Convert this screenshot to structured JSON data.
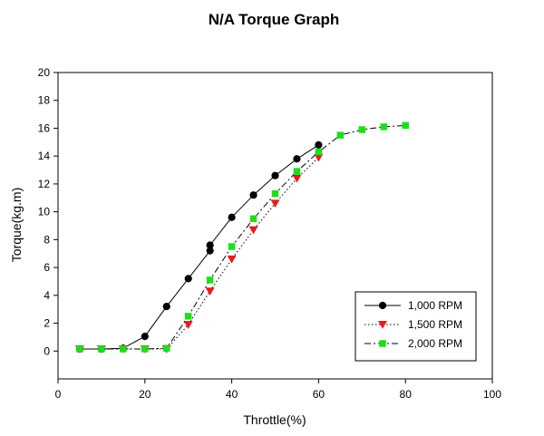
{
  "chart_data": {
    "type": "line",
    "title": "N/A Torque Graph",
    "xlabel": "Throttle(%)",
    "ylabel": "Torque(kg.m)",
    "xlim": [
      0,
      100
    ],
    "ylim": [
      -2,
      20
    ],
    "xticks": [
      0,
      20,
      40,
      60,
      80,
      100
    ],
    "yticks": [
      0,
      2,
      4,
      6,
      8,
      10,
      12,
      14,
      16,
      18,
      20
    ],
    "grid": false,
    "legend_position": "bottom-right",
    "series": [
      {
        "name": "1,000 RPM",
        "color": "#000000",
        "marker": "circle",
        "line_style": "solid",
        "points": [
          [
            5,
            0.15
          ],
          [
            10,
            0.15
          ],
          [
            15,
            0.2
          ],
          [
            20,
            1.05
          ],
          [
            25,
            3.2
          ],
          [
            30,
            5.2
          ],
          [
            35,
            7.2
          ],
          [
            35,
            7.6
          ],
          [
            40,
            9.6
          ],
          [
            45,
            11.2
          ],
          [
            50,
            12.6
          ],
          [
            55,
            13.8
          ],
          [
            60,
            14.8
          ]
        ]
      },
      {
        "name": "1,500 RPM",
        "color": "#e8191d",
        "marker": "triangle-down",
        "line_style": "dotted",
        "points": [
          [
            5,
            0.15
          ],
          [
            10,
            0.15
          ],
          [
            15,
            0.15
          ],
          [
            20,
            0.15
          ],
          [
            25,
            0.15
          ],
          [
            30,
            1.9
          ],
          [
            35,
            4.3
          ],
          [
            40,
            6.6
          ],
          [
            45,
            8.7
          ],
          [
            50,
            10.6
          ],
          [
            55,
            12.4
          ],
          [
            60,
            13.9
          ]
        ]
      },
      {
        "name": "2,000 RPM",
        "color": "#1cdf1c",
        "marker": "square",
        "line_style": "dashed",
        "points": [
          [
            5,
            0.15
          ],
          [
            10,
            0.15
          ],
          [
            15,
            0.15
          ],
          [
            20,
            0.15
          ],
          [
            25,
            0.2
          ],
          [
            30,
            2.5
          ],
          [
            35,
            5.1
          ],
          [
            40,
            7.5
          ],
          [
            45,
            9.5
          ],
          [
            50,
            11.3
          ],
          [
            55,
            12.9
          ],
          [
            60,
            14.3
          ],
          [
            65,
            15.5
          ],
          [
            70,
            15.9
          ],
          [
            75,
            16.1
          ],
          [
            80,
            16.2
          ]
        ]
      }
    ]
  }
}
